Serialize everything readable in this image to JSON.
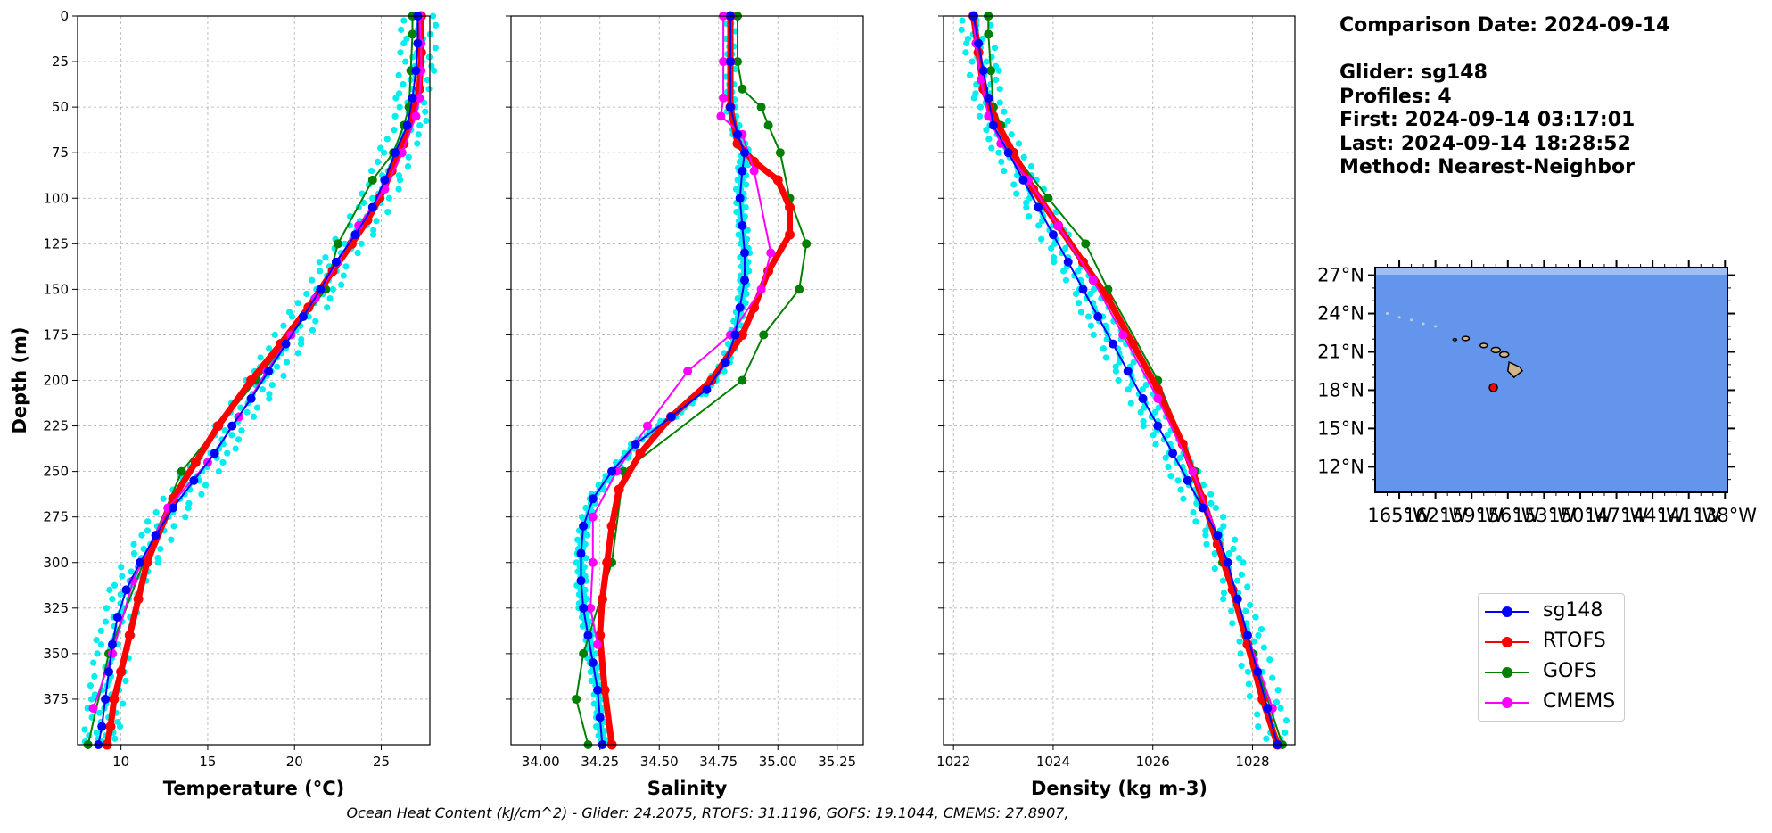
{
  "chart_data": [
    {
      "type": "line",
      "xlabel": "Temperature (°C)",
      "ylabel": "Depth (m)",
      "xlim": [
        7.5,
        27.8
      ],
      "ylim": [
        400,
        0
      ],
      "xticks": [
        10,
        15,
        20,
        25
      ],
      "yticks": [
        0,
        25,
        50,
        75,
        100,
        125,
        150,
        175,
        200,
        225,
        250,
        275,
        300,
        325,
        350,
        375
      ],
      "grid": true,
      "series": [
        {
          "name": "sg148",
          "color": "#0000ff",
          "x": [
            27.1,
            27.1,
            27.0,
            26.8,
            26.5,
            25.8,
            25.2,
            24.5,
            23.5,
            22.4,
            21.5,
            20.5,
            19.5,
            18.5,
            17.5,
            16.4,
            15.4,
            14.2,
            13.0,
            12.0,
            11.1,
            10.3,
            9.8,
            9.5,
            9.3,
            9.1,
            8.9,
            8.7
          ],
          "y": [
            0,
            15,
            30,
            45,
            60,
            75,
            90,
            105,
            120,
            135,
            150,
            165,
            180,
            195,
            210,
            225,
            240,
            255,
            270,
            285,
            300,
            315,
            330,
            345,
            360,
            375,
            390,
            400
          ]
        },
        {
          "name": "RTOFS",
          "color": "#ff0000",
          "x": [
            27.3,
            27.3,
            27.2,
            26.8,
            26.3,
            25.6,
            24.9,
            24.2,
            23.3,
            22.2,
            20.8,
            19.2,
            17.5,
            15.6,
            14.3,
            13.0,
            11.5,
            11.0,
            10.5,
            10.0,
            9.6,
            9.4,
            9.2
          ],
          "y": [
            0,
            20,
            40,
            55,
            70,
            85,
            100,
            112,
            125,
            140,
            160,
            180,
            200,
            225,
            245,
            265,
            300,
            320,
            340,
            360,
            375,
            390,
            400
          ]
        },
        {
          "name": "GOFS",
          "color": "#008000",
          "x": [
            26.8,
            26.8,
            26.7,
            26.6,
            26.3,
            25.7,
            24.5,
            22.5,
            21.8,
            17.8,
            13.5,
            11.3,
            9.3,
            8.1
          ],
          "y": [
            0,
            10,
            30,
            50,
            60,
            75,
            90,
            125,
            150,
            200,
            250,
            300,
            350,
            400
          ]
        },
        {
          "name": "CMEMS",
          "color": "#ff00ff",
          "x": [
            27.2,
            27.3,
            27.3,
            27.2,
            27.0,
            26.2,
            25.2,
            23.7,
            22.5,
            21.2,
            19.8,
            18.4,
            16.8,
            15.0,
            12.7,
            10.7,
            9.5,
            8.4
          ],
          "y": [
            0,
            15,
            30,
            45,
            55,
            75,
            95,
            115,
            135,
            155,
            175,
            195,
            220,
            245,
            270,
            310,
            350,
            380
          ]
        }
      ]
    },
    {
      "type": "line",
      "xlabel": "Salinity",
      "xlim": [
        33.875,
        35.36
      ],
      "ylim": [
        400,
        0
      ],
      "xticks": [
        "34.00",
        "34.25",
        "34.50",
        "34.75",
        "35.00",
        "35.25"
      ],
      "grid": true,
      "series": [
        {
          "name": "sg148",
          "color": "#0000ff",
          "x": [
            34.8,
            34.8,
            34.8,
            34.83,
            34.86,
            34.85,
            34.84,
            34.85,
            34.86,
            34.86,
            34.84,
            34.82,
            34.78,
            34.7,
            34.55,
            34.4,
            34.3,
            34.22,
            34.18,
            34.17,
            34.17,
            34.18,
            34.2,
            34.22,
            34.24,
            34.25,
            34.26
          ],
          "y": [
            0,
            25,
            50,
            65,
            75,
            85,
            100,
            115,
            130,
            145,
            160,
            175,
            190,
            205,
            220,
            235,
            250,
            265,
            280,
            295,
            310,
            325,
            340,
            355,
            370,
            385,
            400
          ]
        },
        {
          "name": "RTOFS",
          "color": "#ff0000",
          "x": [
            34.8,
            34.8,
            34.8,
            34.83,
            34.9,
            35.0,
            35.05,
            35.05,
            34.96,
            34.9,
            34.85,
            34.72,
            34.55,
            34.42,
            34.33,
            34.3,
            34.28,
            34.26,
            34.25,
            34.27,
            34.3
          ],
          "y": [
            0,
            25,
            50,
            70,
            80,
            90,
            105,
            120,
            140,
            160,
            175,
            200,
            220,
            240,
            260,
            280,
            300,
            320,
            340,
            370,
            400
          ]
        },
        {
          "name": "GOFS",
          "color": "#008000",
          "x": [
            34.83,
            34.83,
            34.85,
            34.93,
            34.96,
            35.01,
            35.05,
            35.12,
            35.09,
            34.94,
            34.85,
            34.35,
            34.3,
            34.18,
            34.15,
            34.2
          ],
          "y": [
            0,
            25,
            40,
            50,
            60,
            75,
            100,
            125,
            150,
            175,
            200,
            250,
            300,
            350,
            375,
            400
          ]
        },
        {
          "name": "CMEMS",
          "color": "#ff00ff",
          "x": [
            34.77,
            34.77,
            34.77,
            34.76,
            34.85,
            34.9,
            34.97,
            34.93,
            34.8,
            34.62,
            34.45,
            34.32,
            34.22,
            34.22,
            34.21,
            34.24
          ],
          "y": [
            0,
            25,
            45,
            55,
            65,
            85,
            130,
            150,
            175,
            195,
            225,
            250,
            275,
            300,
            325,
            345
          ]
        }
      ]
    },
    {
      "type": "line",
      "xlabel": "Density (kg m-3)",
      "xlim": [
        1021.8,
        1028.85
      ],
      "ylim": [
        400,
        0
      ],
      "xticks": [
        1022,
        1024,
        1026,
        1028
      ],
      "grid": true,
      "series": [
        {
          "name": "sg148",
          "color": "#0000ff",
          "x": [
            1022.4,
            1022.5,
            1022.6,
            1022.7,
            1022.8,
            1023.1,
            1023.4,
            1023.7,
            1024.0,
            1024.3,
            1024.6,
            1024.9,
            1025.2,
            1025.5,
            1025.8,
            1026.1,
            1026.4,
            1026.7,
            1027.0,
            1027.3,
            1027.5,
            1027.7,
            1027.9,
            1028.1,
            1028.3,
            1028.5
          ],
          "y": [
            0,
            15,
            30,
            45,
            60,
            75,
            90,
            105,
            120,
            135,
            150,
            165,
            180,
            195,
            210,
            225,
            240,
            255,
            270,
            285,
            300,
            320,
            340,
            360,
            380,
            400
          ]
        },
        {
          "name": "RTOFS",
          "color": "#ff0000",
          "x": [
            1022.4,
            1022.5,
            1022.6,
            1022.8,
            1023.2,
            1023.6,
            1024.1,
            1024.6,
            1025.1,
            1025.6,
            1026.1,
            1026.6,
            1027.0,
            1027.3,
            1027.6,
            1027.9,
            1028.2,
            1028.5
          ],
          "y": [
            0,
            20,
            40,
            55,
            75,
            95,
            115,
            135,
            155,
            180,
            205,
            235,
            265,
            290,
            315,
            345,
            375,
            400
          ]
        },
        {
          "name": "GOFS",
          "color": "#008000",
          "x": [
            1022.7,
            1022.7,
            1022.75,
            1022.8,
            1022.95,
            1023.2,
            1023.9,
            1024.65,
            1025.1,
            1026.1,
            1026.85,
            1027.4,
            1028.0,
            1028.6
          ],
          "y": [
            0,
            10,
            30,
            50,
            60,
            75,
            100,
            125,
            150,
            200,
            250,
            300,
            350,
            400
          ]
        },
        {
          "name": "CMEMS",
          "color": "#ff00ff",
          "x": [
            1022.4,
            1022.45,
            1022.55,
            1022.7,
            1022.95,
            1023.5,
            1024.1,
            1024.8,
            1025.4,
            1026.1,
            1026.8,
            1027.5,
            1027.9,
            1028.4
          ],
          "y": [
            0,
            15,
            35,
            55,
            70,
            90,
            115,
            145,
            175,
            210,
            250,
            300,
            340,
            380
          ]
        }
      ]
    }
  ],
  "footer": "Ocean Heat Content (kJ/cm^2) - Glider: 24.2075,  RTOFS: 31.1196,  GOFS: 19.1044,  CMEMS: 27.8907,",
  "info": {
    "comparison_date": "Comparison Date: 2024-09-14",
    "glider": "Glider: sg148",
    "profiles": "Profiles: 4",
    "first": "First: 2024-09-14 03:17:01",
    "last": "Last: 2024-09-14 18:28:52",
    "method": "Method: Nearest-Neighbor"
  },
  "map": {
    "lat_labels": [
      "27°N",
      "24°N",
      "21°N",
      "18°N",
      "15°N",
      "12°N"
    ],
    "lon_labels": [
      "165°W",
      "162°W",
      "159°W",
      "156°W",
      "153°W",
      "150°W",
      "147°W",
      "144°W",
      "141°W",
      "138°W"
    ],
    "lat_values": [
      27,
      24,
      21,
      18,
      15,
      12
    ],
    "lon_values": [
      -165,
      -162,
      -159,
      -156,
      -153,
      -150,
      -147,
      -144,
      -141,
      -138
    ],
    "lon_range": [
      -167,
      -137.8
    ],
    "lat_range": [
      10,
      27.6
    ],
    "glider_position": {
      "lon": -157.2,
      "lat": 18.2
    },
    "ocean_color": "#6495ed",
    "land_color": "#d2b48c"
  },
  "legend": [
    {
      "label": "sg148",
      "color": "#0000ff"
    },
    {
      "label": "RTOFS",
      "color": "#ff0000"
    },
    {
      "label": "GOFS",
      "color": "#008000"
    },
    {
      "label": "CMEMS",
      "color": "#ff00ff"
    }
  ]
}
